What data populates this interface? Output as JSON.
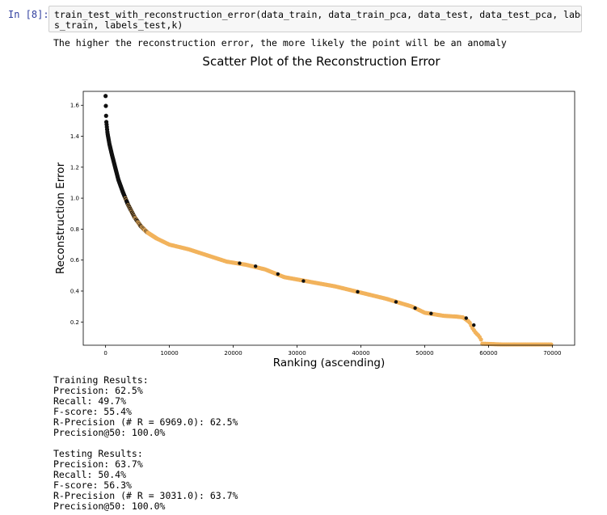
{
  "cell": {
    "prompt": "In [8]:",
    "code_line1": "train_test_with_reconstruction_error(data_train, data_train_pca, data_test, data_test_pca, label",
    "code_line2": "s_train, labels_test,k)"
  },
  "output": {
    "message": "The higher the reconstruction error, the more likely the point will be an anomaly"
  },
  "chart_data": {
    "type": "scatter",
    "title": "Scatter Plot of the Reconstruction Error",
    "xlabel": "Ranking (ascending)",
    "ylabel": "Reconstruction Error",
    "xlim": [
      -3500,
      73500
    ],
    "ylim": [
      0.05,
      1.69
    ],
    "xticks": [
      0,
      10000,
      20000,
      30000,
      40000,
      50000,
      60000,
      70000
    ],
    "yticks": [
      0.2,
      0.4,
      0.6,
      0.8,
      1.0,
      1.2,
      1.4,
      1.6
    ],
    "xtick_labels": [
      "0",
      "10000",
      "20000",
      "30000",
      "40000",
      "50000",
      "60000",
      "70000"
    ],
    "ytick_labels": [
      "0.2",
      "0.4",
      "0.6",
      "0.8",
      "1.0",
      "1.2",
      "1.4",
      "1.6"
    ],
    "grid": false,
    "colors": {
      "anomaly": "#111111",
      "normal": "#f2b35c"
    },
    "curve": [
      [
        0,
        1.66
      ],
      [
        100,
        1.5
      ],
      [
        300,
        1.42
      ],
      [
        600,
        1.35
      ],
      [
        1000,
        1.28
      ],
      [
        1500,
        1.2
      ],
      [
        2000,
        1.12
      ],
      [
        2700,
        1.04
      ],
      [
        3500,
        0.96
      ],
      [
        4500,
        0.88
      ],
      [
        5500,
        0.82
      ],
      [
        6500,
        0.78
      ],
      [
        8000,
        0.74
      ],
      [
        10000,
        0.7
      ],
      [
        13000,
        0.67
      ],
      [
        16000,
        0.63
      ],
      [
        19000,
        0.59
      ],
      [
        22000,
        0.57
      ],
      [
        25000,
        0.54
      ],
      [
        28000,
        0.49
      ],
      [
        32000,
        0.46
      ],
      [
        36000,
        0.43
      ],
      [
        40000,
        0.39
      ],
      [
        44000,
        0.35
      ],
      [
        48000,
        0.3
      ],
      [
        50000,
        0.26
      ],
      [
        53000,
        0.24
      ],
      [
        55000,
        0.235
      ],
      [
        56000,
        0.23
      ],
      [
        57000,
        0.2
      ],
      [
        57500,
        0.16
      ],
      [
        58000,
        0.13
      ],
      [
        58500,
        0.11
      ],
      [
        58800,
        0.09
      ],
      [
        59000,
        0.06
      ],
      [
        62000,
        0.055
      ],
      [
        66000,
        0.055
      ],
      [
        70000,
        0.055
      ]
    ],
    "anomaly_marks": [
      [
        21000,
        0.58
      ],
      [
        23500,
        0.56
      ],
      [
        27000,
        0.51
      ],
      [
        31000,
        0.465
      ],
      [
        39500,
        0.395
      ],
      [
        45500,
        0.33
      ],
      [
        48500,
        0.29
      ],
      [
        51000,
        0.255
      ],
      [
        56500,
        0.225
      ],
      [
        57700,
        0.18
      ]
    ]
  },
  "training": {
    "header": "Training Results:",
    "precision": "Precision: 62.5%",
    "recall": "Recall: 49.7%",
    "fscore": "F-score: 55.4%",
    "rprecision": "R-Precision (# R = 6969.0): 62.5%",
    "precision50": "Precision@50: 100.0%"
  },
  "testing": {
    "header": "Testing Results:",
    "precision": "Precision: 63.7%",
    "recall": "Recall: 50.4%",
    "fscore": "F-score: 56.3%",
    "rprecision": "R-Precision (# R = 3031.0): 63.7%",
    "precision50": "Precision@50: 100.0%"
  }
}
